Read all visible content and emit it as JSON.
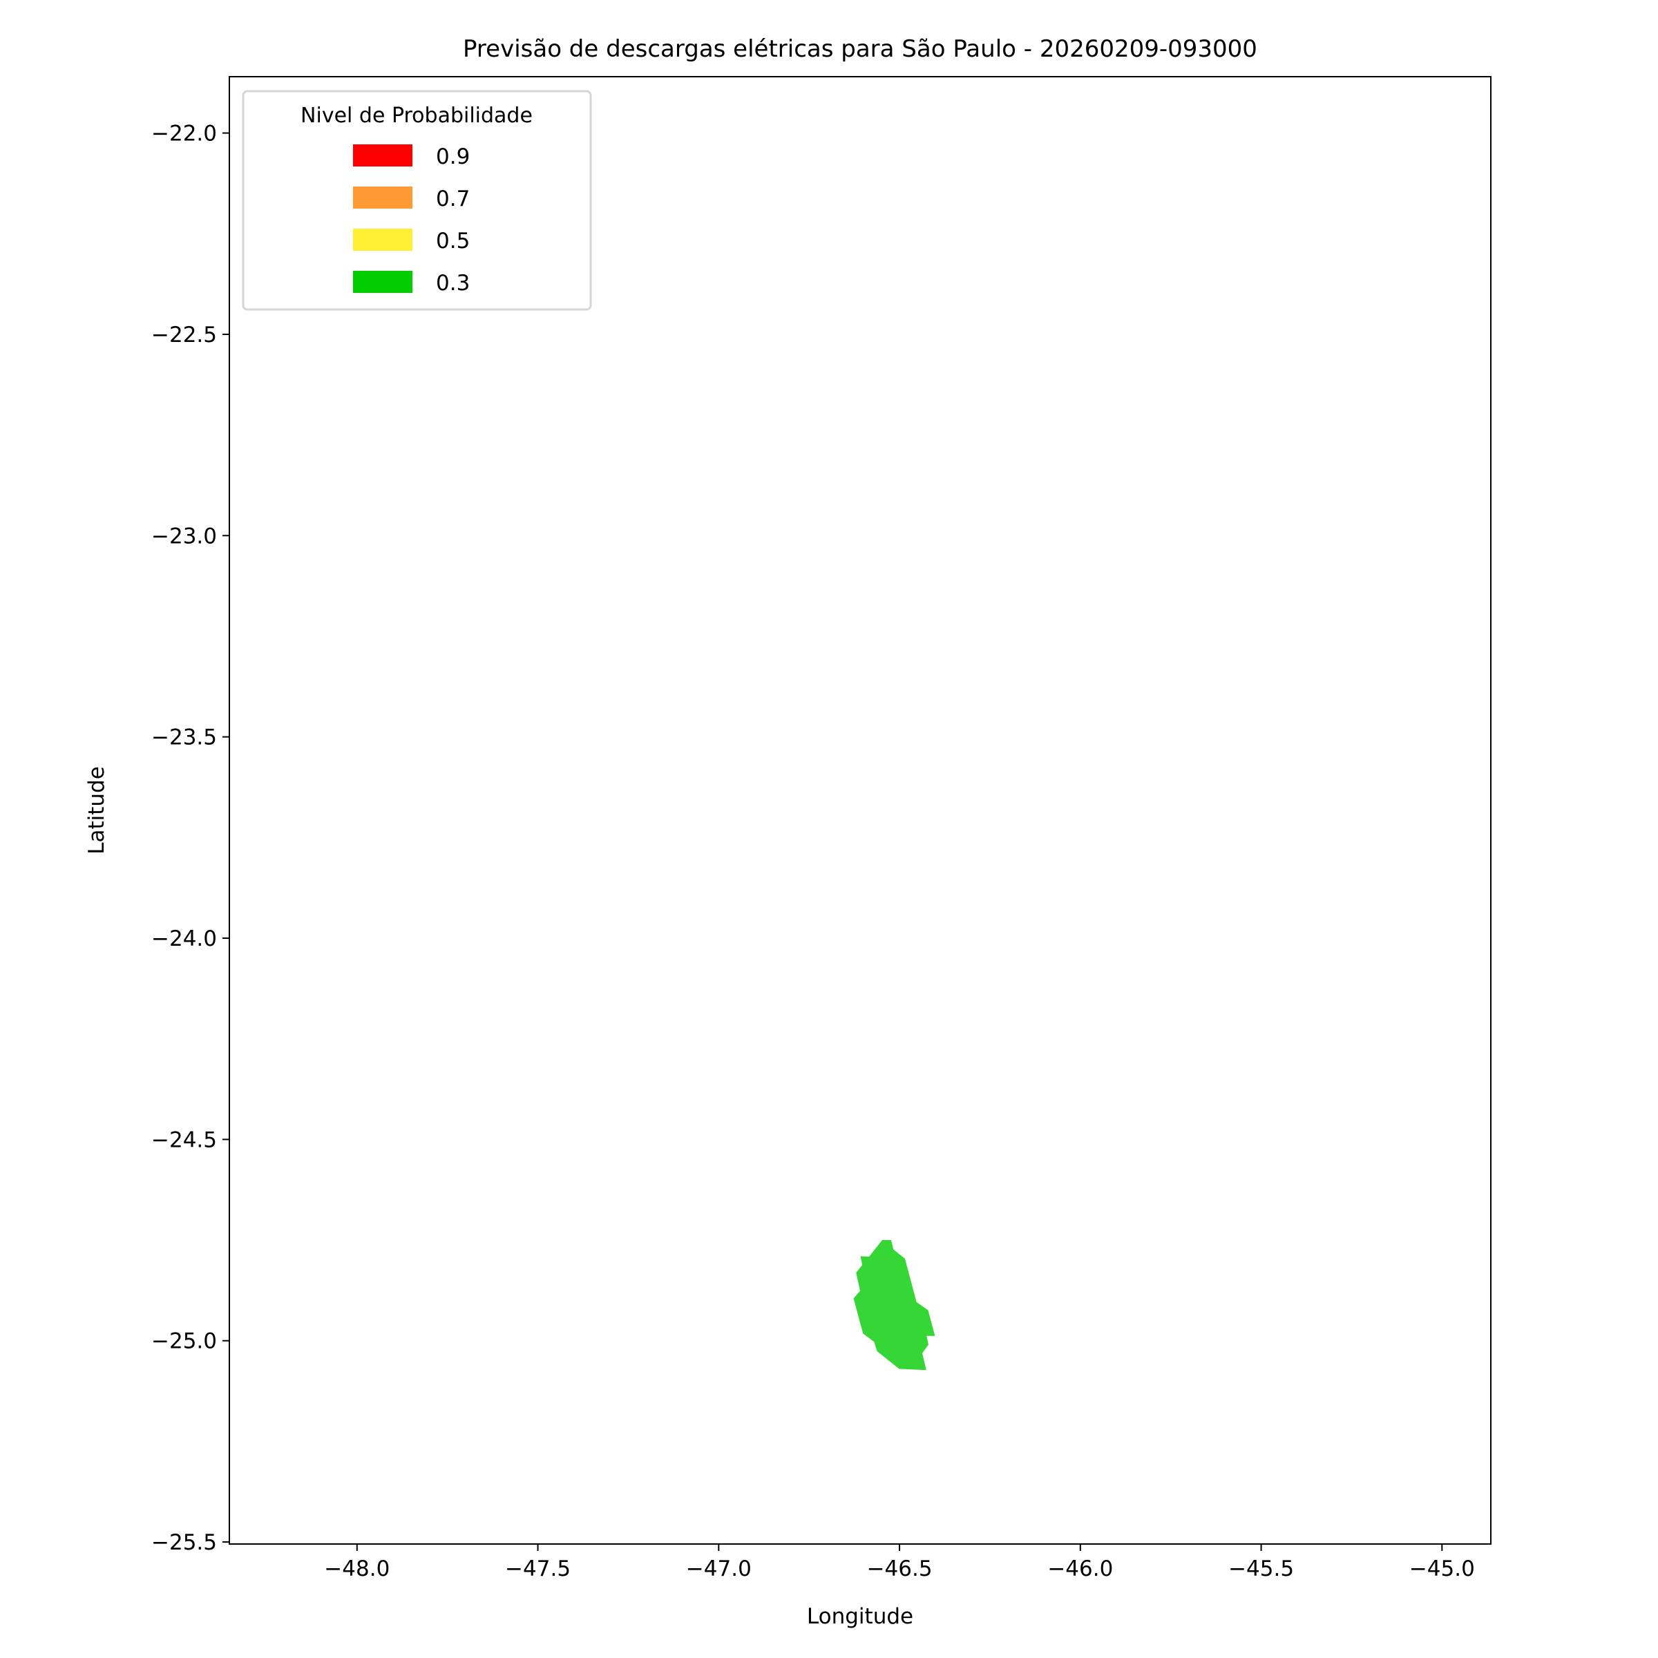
{
  "chart_data": {
    "type": "map",
    "title": "Previsão de descargas elétricas para São Paulo - 20260209-093000",
    "xlabel": "Longitude",
    "ylabel": "Latitude",
    "xlim": [
      -48.353,
      -44.865
    ],
    "ylim": [
      -25.505,
      -21.86
    ],
    "xticks": [
      -48.0,
      -47.5,
      -47.0,
      -46.5,
      -46.0,
      -45.5,
      -45.0
    ],
    "xtick_labels": [
      "−48.0",
      "−47.5",
      "−47.0",
      "−46.5",
      "−46.0",
      "−45.5",
      "−45.0"
    ],
    "yticks": [
      -22.0,
      -22.5,
      -23.0,
      -23.5,
      -24.0,
      -24.5,
      -25.0,
      -25.5
    ],
    "ytick_labels": [
      "−22.0",
      "−22.5",
      "−23.0",
      "−23.5",
      "−24.0",
      "−24.5",
      "−25.0",
      "−25.5"
    ],
    "grid": false,
    "legend": {
      "title": "Nivel de Probabilidade",
      "placement": "top-left",
      "entries": [
        {
          "label": "0.9",
          "color": "#ff0000"
        },
        {
          "label": "0.7",
          "color": "#ff9933"
        },
        {
          "label": "0.5",
          "color": "#ffee33"
        },
        {
          "label": "0.3",
          "color": "#00cc00"
        }
      ]
    },
    "polygons": [
      {
        "level": 0.3,
        "color": "#35d635",
        "coords": [
          [
            -46.548,
            -24.75
          ],
          [
            -46.523,
            -24.75
          ],
          [
            -46.517,
            -24.773
          ],
          [
            -46.485,
            -24.796
          ],
          [
            -46.453,
            -24.904
          ],
          [
            -46.421,
            -24.924
          ],
          [
            -46.402,
            -24.988
          ],
          [
            -46.425,
            -24.988
          ],
          [
            -46.42,
            -25.01
          ],
          [
            -46.437,
            -25.031
          ],
          [
            -46.426,
            -25.073
          ],
          [
            -46.501,
            -25.07
          ],
          [
            -46.562,
            -25.026
          ],
          [
            -46.57,
            -25.003
          ],
          [
            -46.601,
            -24.982
          ],
          [
            -46.627,
            -24.895
          ],
          [
            -46.609,
            -24.876
          ],
          [
            -46.62,
            -24.831
          ],
          [
            -46.603,
            -24.812
          ],
          [
            -46.608,
            -24.79
          ],
          [
            -46.584,
            -24.791
          ]
        ]
      }
    ]
  }
}
